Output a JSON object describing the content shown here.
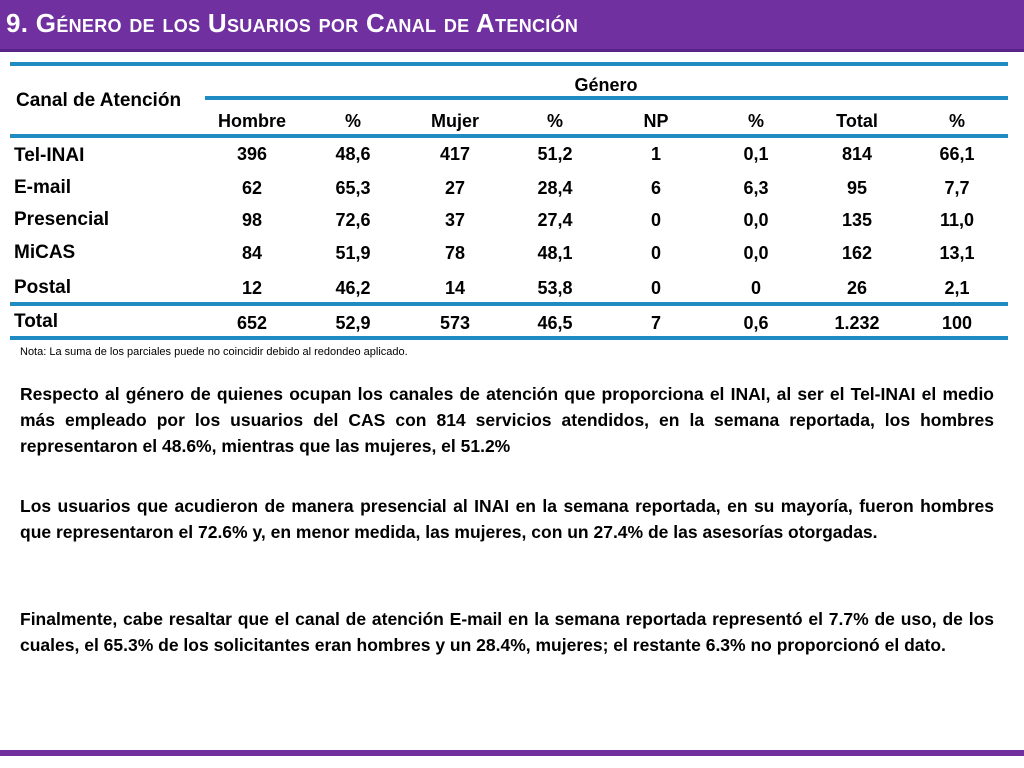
{
  "title": "9. Género de los Usuarios por Canal de Atención",
  "table": {
    "row_header": "Canal de Atención",
    "group_header": "Género",
    "columns": [
      "Hombre",
      "%",
      "Mujer",
      "%",
      "NP",
      "%",
      "Total",
      "%"
    ],
    "rows": [
      {
        "label": "Tel-INAI",
        "values": [
          "396",
          "48,6",
          "417",
          "51,2",
          "1",
          "0,1",
          "814",
          "66,1"
        ]
      },
      {
        "label": "E-mail",
        "values": [
          "62",
          "65,3",
          "27",
          "28,4",
          "6",
          "6,3",
          "95",
          "7,7"
        ]
      },
      {
        "label": "Presencial",
        "values": [
          "98",
          "72,6",
          "37",
          "27,4",
          "0",
          "0,0",
          "135",
          "11,0"
        ]
      },
      {
        "label": "MiCAS",
        "values": [
          "84",
          "51,9",
          "78",
          "48,1",
          "0",
          "0,0",
          "162",
          "13,1"
        ]
      },
      {
        "label": "Postal",
        "values": [
          "12",
          "46,2",
          "14",
          "53,8",
          "0",
          "0",
          "26",
          "2,1"
        ]
      },
      {
        "label": "Total",
        "values": [
          "652",
          "52,9",
          "573",
          "46,5",
          "7",
          "0,6",
          "1.232",
          "100"
        ]
      }
    ]
  },
  "note": "Nota: La suma de los parciales puede no coincidir debido al redondeo aplicado.",
  "paragraphs": [
    "Respecto al género de quienes ocupan los canales de atención que proporciona el INAI, al ser el Tel-INAI el medio más empleado por los usuarios del CAS con 814 servicios atendidos, en la semana reportada, los hombres representaron el 48.6%, mientras que las mujeres, el 51.2%",
    "Los usuarios que acudieron de manera presencial al INAI en la semana reportada, en su mayoría, fueron hombres que representaron el 72.6% y, en menor medida, las mujeres, con un 27.4% de las asesorías otorgadas.",
    "Finalmente, cabe resaltar que el canal de atención E-mail en la semana reportada representó el 7.7% de uso, de los cuales, el 65.3% de los solicitantes eran hombres y un 28.4%, mujeres; el restante 6.3% no proporcionó el dato."
  ],
  "colors": {
    "accent": "#7030a0",
    "rule": "#1e8bc3"
  }
}
